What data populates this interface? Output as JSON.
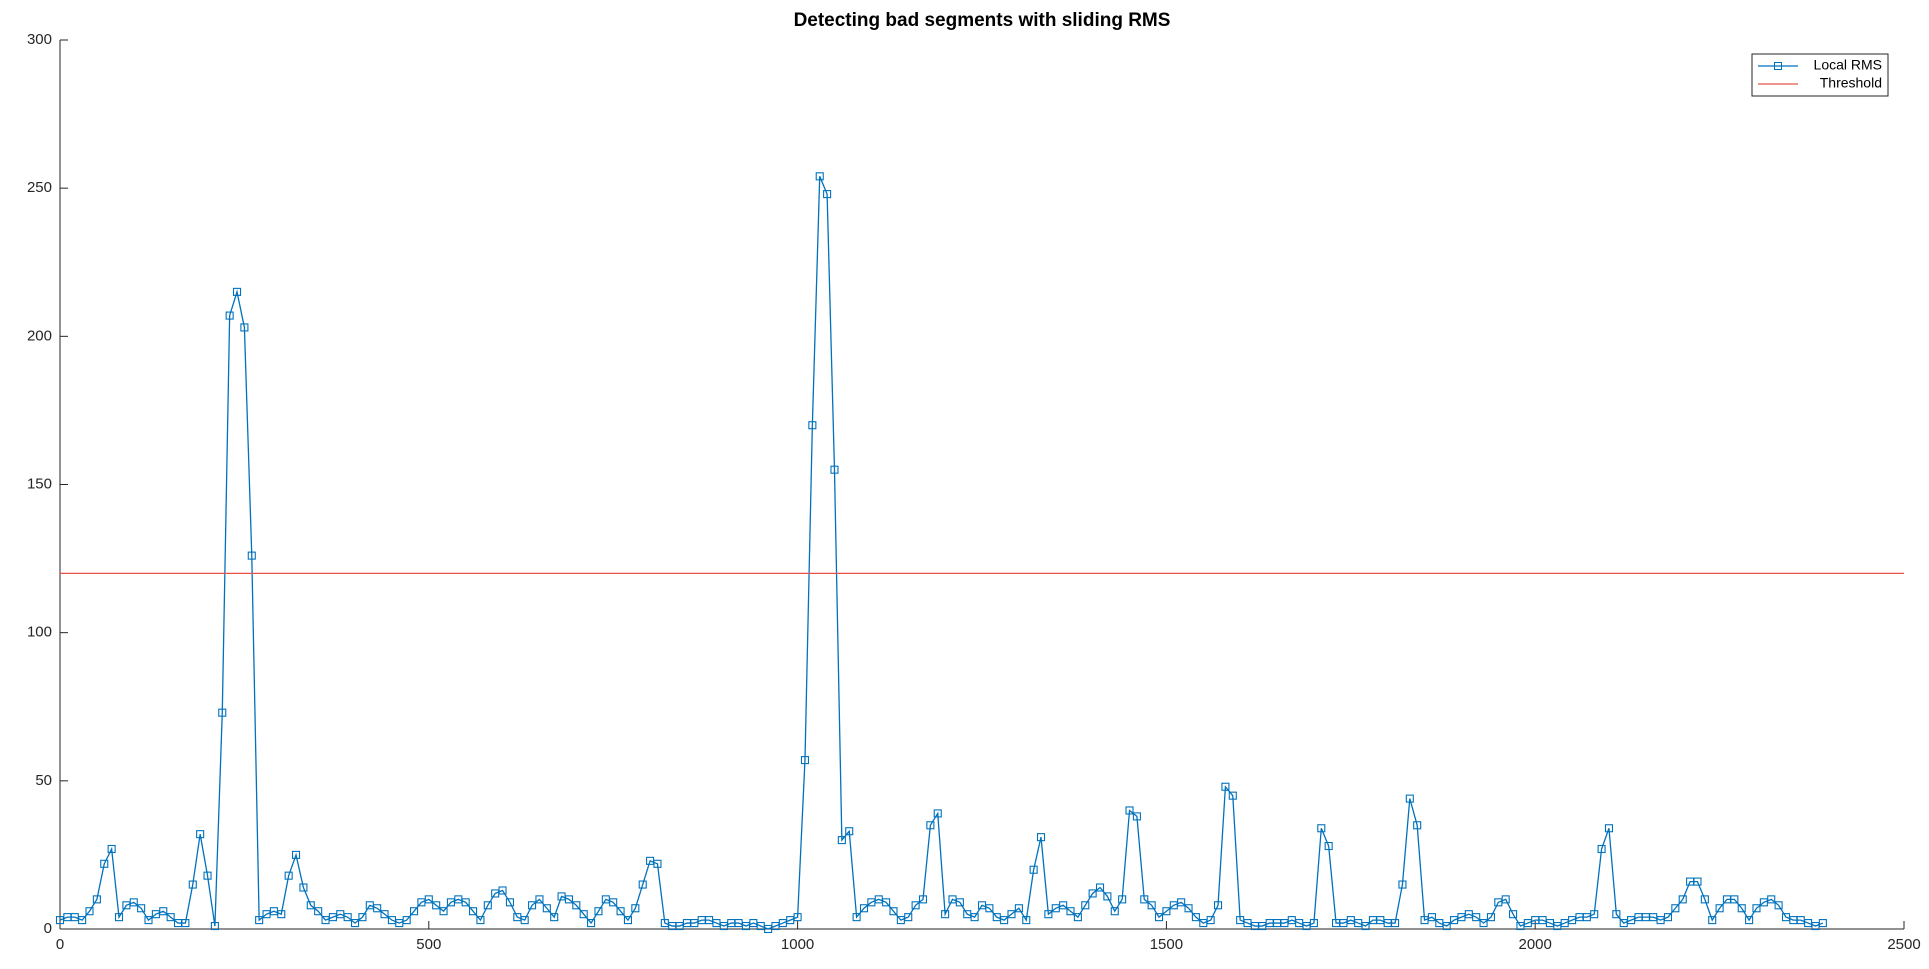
{
  "chart_data": {
    "type": "line",
    "title": "Detecting bad segments with sliding RMS",
    "xlim": [
      0,
      2500
    ],
    "xticks": [
      0,
      500,
      1000,
      1500,
      2000,
      2500
    ],
    "ylim": [
      0,
      300
    ],
    "yticks": [
      0,
      50,
      100,
      150,
      200,
      250,
      300
    ],
    "grid": false,
    "legend": "top-right",
    "series": [
      {
        "name": "Local RMS",
        "color": "#0072bd",
        "marker": "square",
        "x": [
          0,
          10,
          20,
          30,
          40,
          50,
          60,
          70,
          80,
          90,
          100,
          110,
          120,
          130,
          140,
          150,
          160,
          170,
          180,
          190,
          200,
          210,
          220,
          230,
          240,
          250,
          260,
          270,
          280,
          290,
          300,
          310,
          320,
          330,
          340,
          350,
          360,
          370,
          380,
          390,
          400,
          410,
          420,
          430,
          440,
          450,
          460,
          470,
          480,
          490,
          500,
          510,
          520,
          530,
          540,
          550,
          560,
          570,
          580,
          590,
          600,
          610,
          620,
          630,
          640,
          650,
          660,
          670,
          680,
          690,
          700,
          710,
          720,
          730,
          740,
          750,
          760,
          770,
          780,
          790,
          800,
          810,
          820,
          830,
          840,
          850,
          860,
          870,
          880,
          890,
          900,
          910,
          920,
          930,
          940,
          950,
          960,
          970,
          980,
          990,
          1000,
          1010,
          1020,
          1030,
          1040,
          1050,
          1060,
          1070,
          1080,
          1090,
          1100,
          1110,
          1120,
          1130,
          1140,
          1150,
          1160,
          1170,
          1180,
          1190,
          1200,
          1210,
          1220,
          1230,
          1240,
          1250,
          1260,
          1270,
          1280,
          1290,
          1300,
          1310,
          1320,
          1330,
          1340,
          1350,
          1360,
          1370,
          1380,
          1390,
          1400,
          1410,
          1420,
          1430,
          1440,
          1450,
          1460,
          1470,
          1480,
          1490,
          1500,
          1510,
          1520,
          1530,
          1540,
          1550,
          1560,
          1570,
          1580,
          1590,
          1600,
          1610,
          1620,
          1630,
          1640,
          1650,
          1660,
          1670,
          1680,
          1690,
          1700,
          1710,
          1720,
          1730,
          1740,
          1750,
          1760,
          1770,
          1780,
          1790,
          1800,
          1810,
          1820,
          1830,
          1840,
          1850,
          1860,
          1870,
          1880,
          1890,
          1900,
          1910,
          1920,
          1930,
          1940,
          1950,
          1960,
          1970,
          1980,
          1990,
          2000,
          2010,
          2020,
          2030,
          2040,
          2050,
          2060,
          2070,
          2080,
          2090,
          2100,
          2110,
          2120,
          2130,
          2140,
          2150,
          2160,
          2170,
          2180,
          2190,
          2200,
          2210,
          2220,
          2230,
          2240,
          2250,
          2260,
          2270,
          2280,
          2290,
          2300,
          2310,
          2320,
          2330,
          2340,
          2350,
          2360,
          2370,
          2380,
          2390
        ],
        "values": [
          3,
          4,
          4,
          3,
          6,
          10,
          22,
          27,
          4,
          8,
          9,
          7,
          3,
          5,
          6,
          4,
          2,
          2,
          15,
          32,
          18,
          1,
          73,
          207,
          215,
          203,
          126,
          3,
          5,
          6,
          5,
          18,
          25,
          14,
          8,
          6,
          3,
          4,
          5,
          4,
          2,
          4,
          8,
          7,
          5,
          3,
          2,
          3,
          6,
          9,
          10,
          8,
          6,
          9,
          10,
          9,
          6,
          3,
          8,
          12,
          13,
          9,
          4,
          3,
          8,
          10,
          7,
          4,
          11,
          10,
          8,
          5,
          2,
          6,
          10,
          9,
          6,
          3,
          7,
          15,
          23,
          22,
          2,
          1,
          1,
          2,
          2,
          3,
          3,
          2,
          1,
          2,
          2,
          1,
          2,
          1,
          0,
          1,
          2,
          3,
          4,
          57,
          170,
          254,
          248,
          155,
          30,
          33,
          4,
          7,
          9,
          10,
          9,
          6,
          3,
          4,
          8,
          10,
          35,
          39,
          5,
          10,
          9,
          5,
          4,
          8,
          7,
          4,
          3,
          5,
          7,
          3,
          20,
          31,
          5,
          7,
          8,
          6,
          4,
          8,
          12,
          14,
          11,
          6,
          10,
          40,
          38,
          10,
          8,
          4,
          6,
          8,
          9,
          7,
          4,
          2,
          3,
          8,
          48,
          45,
          3,
          2,
          1,
          1,
          2,
          2,
          2,
          3,
          2,
          1,
          2,
          34,
          28,
          2,
          2,
          3,
          2,
          1,
          3,
          3,
          2,
          2,
          15,
          44,
          35,
          3,
          4,
          2,
          1,
          3,
          4,
          5,
          4,
          2,
          4,
          9,
          10,
          5,
          1,
          2,
          3,
          3,
          2,
          1,
          2,
          3,
          4,
          4,
          5,
          27,
          34,
          5,
          2,
          3,
          4,
          4,
          4,
          3,
          4,
          7,
          10,
          16,
          16,
          10,
          3,
          7,
          10,
          10,
          7,
          3,
          7,
          9,
          10,
          8,
          4,
          3,
          3,
          2,
          1,
          2
        ]
      },
      {
        "name": "Threshold",
        "color": "#e8504a",
        "x": [
          0,
          2500
        ],
        "values": [
          120,
          120
        ]
      }
    ]
  }
}
